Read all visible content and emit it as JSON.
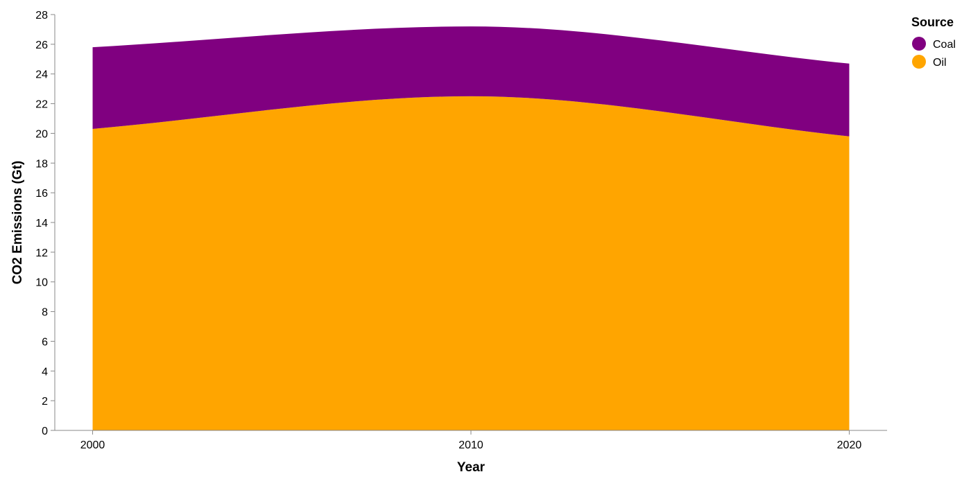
{
  "chart_data": {
    "type": "area",
    "stacked": true,
    "xlabel": "Year",
    "ylabel": "CO2 Emissions (Gt)",
    "x": [
      2000,
      2010,
      2020
    ],
    "xlim": [
      1999,
      2021
    ],
    "ylim": [
      0,
      28
    ],
    "x_ticks": [
      2000,
      2010,
      2020
    ],
    "y_ticks": [
      0,
      2,
      4,
      6,
      8,
      10,
      12,
      14,
      16,
      18,
      20,
      22,
      24,
      26,
      28
    ],
    "grid": false,
    "series": [
      {
        "name": "Oil",
        "values": [
          20.3,
          22.5,
          19.8
        ],
        "color": "#FFA500"
      },
      {
        "name": "Coal",
        "values": [
          5.5,
          4.7,
          4.9
        ],
        "color": "#800080"
      }
    ],
    "legend": {
      "title": "Source",
      "position": "top-right",
      "items": [
        {
          "label": "Coal",
          "color": "#800080"
        },
        {
          "label": "Oil",
          "color": "#FFA500"
        }
      ]
    }
  }
}
